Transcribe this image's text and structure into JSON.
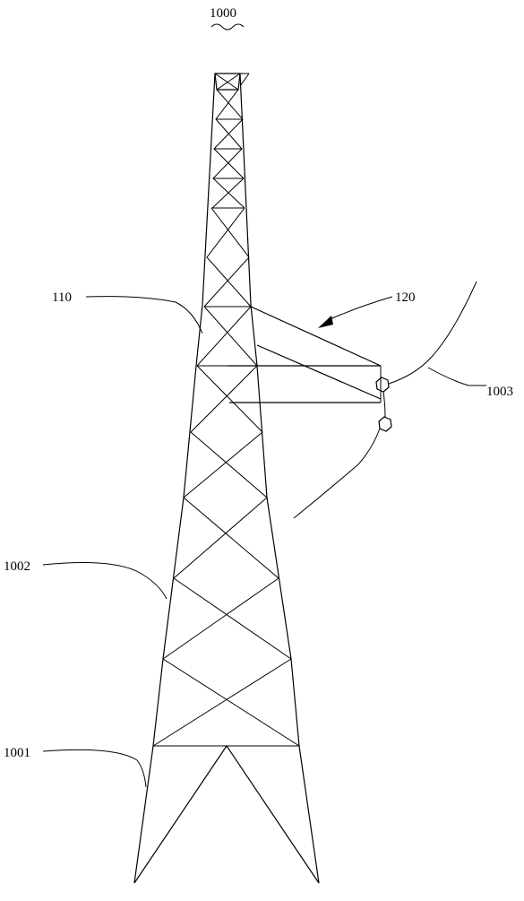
{
  "figure": {
    "title_ref": "1000",
    "labels": {
      "ref_110": "110",
      "ref_120": "120",
      "ref_1001": "1001",
      "ref_1002": "1002",
      "ref_1003": "1003"
    }
  },
  "colors": {
    "stroke": "#000000",
    "background": "#ffffff"
  }
}
